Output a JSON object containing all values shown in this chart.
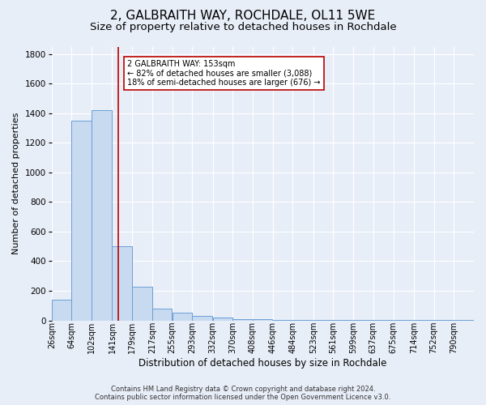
{
  "title": "2, GALBRAITH WAY, ROCHDALE, OL11 5WE",
  "subtitle": "Size of property relative to detached houses in Rochdale",
  "xlabel": "Distribution of detached houses by size in Rochdale",
  "ylabel": "Number of detached properties",
  "footer_line1": "Contains HM Land Registry data © Crown copyright and database right 2024.",
  "footer_line2": "Contains public sector information licensed under the Open Government Licence v3.0.",
  "bin_labels": [
    "26sqm",
    "64sqm",
    "102sqm",
    "141sqm",
    "179sqm",
    "217sqm",
    "255sqm",
    "293sqm",
    "332sqm",
    "370sqm",
    "408sqm",
    "446sqm",
    "484sqm",
    "523sqm",
    "561sqm",
    "599sqm",
    "637sqm",
    "675sqm",
    "714sqm",
    "752sqm",
    "790sqm"
  ],
  "bin_edges": [
    26,
    64,
    102,
    141,
    179,
    217,
    255,
    293,
    332,
    370,
    408,
    446,
    484,
    523,
    561,
    599,
    637,
    675,
    714,
    752,
    790
  ],
  "bar_heights": [
    140,
    1350,
    1420,
    500,
    230,
    80,
    50,
    30,
    20,
    10,
    8,
    5,
    5,
    4,
    3,
    3,
    2,
    2,
    1,
    1,
    1
  ],
  "bar_color": "#c8daf0",
  "bar_edge_color": "#6a9fd8",
  "property_size": 153,
  "vline_color": "#bb0000",
  "annotation_text": "2 GALBRAITH WAY: 153sqm\n← 82% of detached houses are smaller (3,088)\n18% of semi-detached houses are larger (676) →",
  "annotation_box_color": "white",
  "annotation_box_edge": "#bb0000",
  "ylim": [
    0,
    1850
  ],
  "background_color": "#e8eef8",
  "grid_color": "white",
  "title_fontsize": 11,
  "subtitle_fontsize": 9.5,
  "ylabel_fontsize": 8,
  "xlabel_fontsize": 8.5,
  "tick_fontsize": 7,
  "ytick_fontsize": 7.5,
  "annotation_fontsize": 7,
  "footer_fontsize": 6
}
